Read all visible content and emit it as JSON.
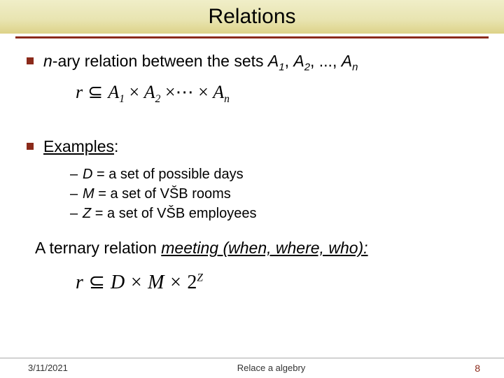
{
  "title": "Relations",
  "bullet1_prefix": "n",
  "bullet1_mid": "-ary relation between the sets ",
  "bullet1_A": "A",
  "bullet1_comma": ", ",
  "bullet1_dots": "...",
  "bullet1_sub1": "1",
  "bullet1_sub2": "2",
  "bullet1_subn": "n",
  "formula1_r": "r",
  "formula1_sub": " ⊆ ",
  "formula1_A": "A",
  "formula1_s1": "1",
  "formula1_x": " × ",
  "formula1_s2": "2",
  "formula1_xdot": " ×⋯ × ",
  "formula1_sn": "n",
  "examples_label": "Examples",
  "examples_colon": ":",
  "dash1_var": "D",
  "dash1_txt": " = a set of possible days",
  "dash2_var": "M",
  "dash2_txt": " = a set of VŠB rooms",
  "dash3_var": "Z",
  "dash3_txt": " = a set of VŠB employees",
  "ternary_a": "A ternary relation ",
  "ternary_b": "meeting (when, where, who):",
  "formula2_r": "r",
  "formula2_sub": " ⊆ ",
  "formula2_D": "D",
  "formula2_x": " × ",
  "formula2_M": "M",
  "formula2_x2": " × ",
  "formula2_2": "2",
  "formula2_Z": "Z",
  "footer_date": "3/11/2021",
  "footer_center": "Relace a algebry",
  "footer_page": "8",
  "colors": {
    "accent": "#8b2a1a",
    "title_bg_top": "#f0eec8",
    "title_bg_bottom": "#ddd288"
  }
}
